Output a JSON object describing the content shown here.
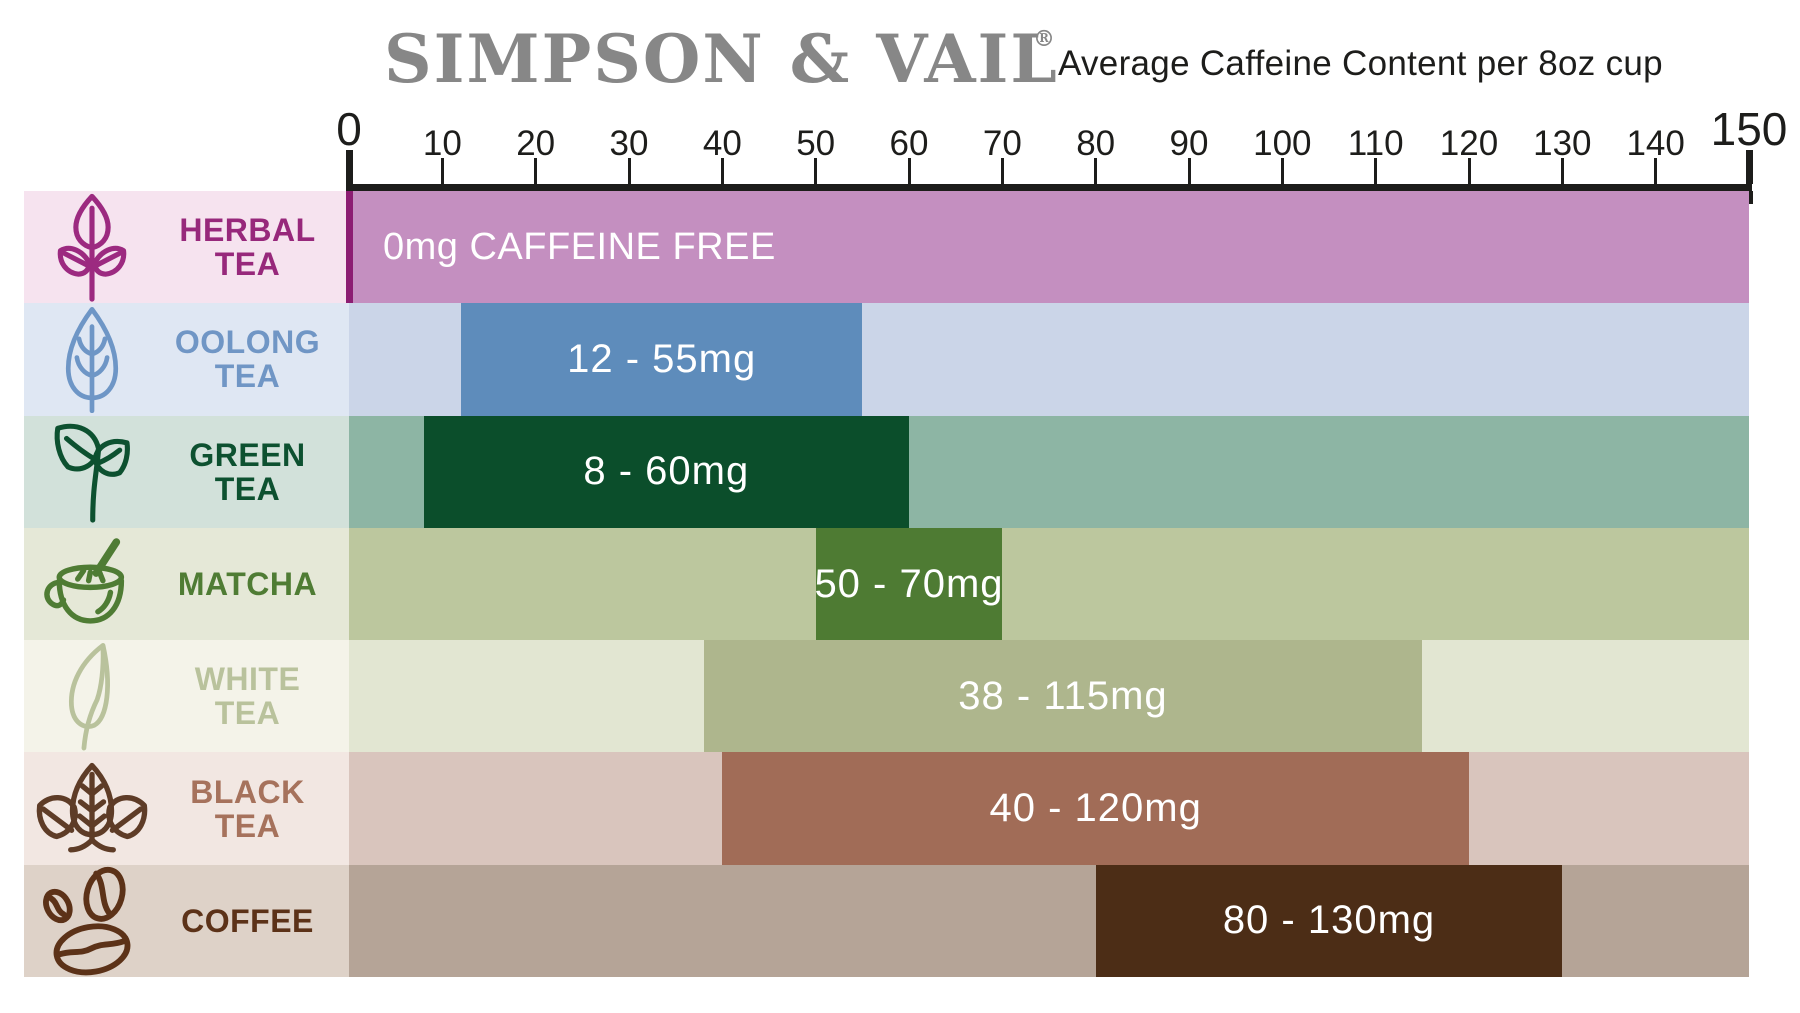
{
  "header": {
    "brand": "SIMPSON & VAIL",
    "registered_mark": "®",
    "subtitle": "Average Caffeine Content per 8oz cup"
  },
  "axis": {
    "min": 0,
    "max": 150,
    "step": 10,
    "ticks": [
      0,
      10,
      20,
      30,
      40,
      50,
      60,
      70,
      80,
      90,
      100,
      110,
      120,
      130,
      140,
      150
    ],
    "color": "#1d1d1b"
  },
  "chart_data": {
    "type": "bar",
    "subtype": "horizontal-range",
    "title": "Average Caffeine Content per 8oz cup",
    "categories": [
      "Herbal Tea",
      "Oolong Tea",
      "Green Tea",
      "Matcha",
      "White Tea",
      "Black Tea",
      "Coffee"
    ],
    "series": [
      {
        "name": "Herbal Tea",
        "min_mg": 0,
        "max_mg": 0,
        "label": "0mg CAFFEINE FREE"
      },
      {
        "name": "Oolong Tea",
        "min_mg": 12,
        "max_mg": 55,
        "label": "12 - 55mg"
      },
      {
        "name": "Green Tea",
        "min_mg": 8,
        "max_mg": 60,
        "label": "8 - 60mg"
      },
      {
        "name": "Matcha",
        "min_mg": 50,
        "max_mg": 70,
        "label": "50 - 70mg"
      },
      {
        "name": "White Tea",
        "min_mg": 38,
        "max_mg": 115,
        "label": "38 - 115mg"
      },
      {
        "name": "Black Tea",
        "min_mg": 40,
        "max_mg": 120,
        "label": "40 - 120mg"
      },
      {
        "name": "Coffee",
        "min_mg": 80,
        "max_mg": 130,
        "label": "80 - 130mg"
      }
    ],
    "xlim": [
      0,
      150
    ],
    "x_tick_step": 10,
    "grid": false,
    "legend": "none"
  },
  "rows": [
    {
      "id": "herbal-tea",
      "label_lines": [
        "HERBAL",
        "TEA"
      ],
      "icon": "herbal-sprig-icon",
      "bar_label": "0mg CAFFEINE FREE",
      "min": 0,
      "max": 0,
      "full_band": true,
      "colors": {
        "label_bg": "#f6e3ef",
        "label_text": "#97287b",
        "icon": "#9c2a80",
        "band": "#c48fc0",
        "bar": "#c48fc0",
        "accent_line": "#8c1d72"
      }
    },
    {
      "id": "oolong-tea",
      "label_lines": [
        "OOLONG",
        "TEA"
      ],
      "icon": "oolong-leaf-icon",
      "bar_label": "12 - 55mg",
      "min": 12,
      "max": 55,
      "full_band": false,
      "colors": {
        "label_bg": "#dfe7f3",
        "label_text": "#7096c5",
        "icon": "#6e96c6",
        "band": "#cbd5e8",
        "bar": "#5e8cbb"
      }
    },
    {
      "id": "green-tea",
      "label_lines": [
        "GREEN",
        "TEA"
      ],
      "icon": "green-sprout-icon",
      "bar_label": "8 - 60mg",
      "min": 8,
      "max": 60,
      "full_band": false,
      "colors": {
        "label_bg": "#d2e1da",
        "label_text": "#0d5130",
        "icon": "#0d5130",
        "band": "#8db5a4",
        "bar": "#0b4e2b"
      }
    },
    {
      "id": "matcha",
      "label_lines": [
        "MATCHA"
      ],
      "icon": "matcha-cup-icon",
      "bar_label": "50 - 70mg",
      "min": 50,
      "max": 70,
      "full_band": false,
      "colors": {
        "label_bg": "#e5e8d7",
        "label_text": "#4f7c34",
        "icon": "#4f7c34",
        "band": "#bcc79e",
        "bar": "#4e7b33"
      }
    },
    {
      "id": "white-tea",
      "label_lines": [
        "WHITE",
        "TEA"
      ],
      "icon": "white-leaf-icon",
      "bar_label": "38 - 115mg",
      "min": 38,
      "max": 115,
      "full_band": false,
      "colors": {
        "label_bg": "#f4f3e9",
        "label_text": "#b9c29c",
        "icon": "#b9c29c",
        "band": "#e2e6d2",
        "bar": "#aeb68d"
      }
    },
    {
      "id": "black-tea",
      "label_lines": [
        "BLACK",
        "TEA"
      ],
      "icon": "black-leaves-icon",
      "bar_label": "40 - 120mg",
      "min": 40,
      "max": 120,
      "full_band": false,
      "colors": {
        "label_bg": "#f2e7e2",
        "label_text": "#a6725c",
        "icon": "#5e3c27",
        "band": "#d9c5bd",
        "bar": "#a16c57"
      }
    },
    {
      "id": "coffee",
      "label_lines": [
        "COFFEE"
      ],
      "icon": "coffee-beans-icon",
      "bar_label": "80 - 130mg",
      "min": 80,
      "max": 130,
      "full_band": false,
      "colors": {
        "label_bg": "#ded2c8",
        "label_text": "#5c3218",
        "icon": "#5c3218",
        "band": "#b5a497",
        "bar": "#4c2d16"
      }
    }
  ]
}
